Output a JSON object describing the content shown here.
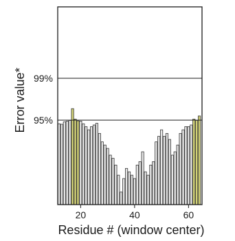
{
  "chart_data": {
    "type": "bar",
    "xlabel": "Residue # (window center)",
    "ylabel": "Error value*",
    "x_ticks": [
      20,
      40,
      60
    ],
    "x_range": [
      11.5,
      65
    ],
    "y_scale": "cumulative percentile (nonlinear)",
    "reference_lines": [
      {
        "label": "99%",
        "value": 99
      },
      {
        "label": "95%",
        "value": 95
      }
    ],
    "colors": {
      "default_bar": "#e6e6e6",
      "highlight_bar": "#d2d277",
      "bar_edge": "#333333"
    },
    "threshold_percentile": 95,
    "bars": [
      {
        "x": 12,
        "pct": 93.5
      },
      {
        "x": 13,
        "pct": 93.3
      },
      {
        "x": 14,
        "pct": 94.3
      },
      {
        "x": 15,
        "pct": 94.6
      },
      {
        "x": 16,
        "pct": 94.9
      },
      {
        "x": 17,
        "pct": 96.1,
        "highlight": true
      },
      {
        "x": 18,
        "pct": 95.1,
        "highlight": true
      },
      {
        "x": 19,
        "pct": 94.7,
        "highlight": true
      },
      {
        "x": 20,
        "pct": 94.6
      },
      {
        "x": 21,
        "pct": 93.5
      },
      {
        "x": 22,
        "pct": 92.3
      },
      {
        "x": 23,
        "pct": 91.0
      },
      {
        "x": 24,
        "pct": 92.3
      },
      {
        "x": 25,
        "pct": 93.0
      },
      {
        "x": 26,
        "pct": 93.7
      },
      {
        "x": 27,
        "pct": 89.5
      },
      {
        "x": 28,
        "pct": 86.0
      },
      {
        "x": 29,
        "pct": 84.7
      },
      {
        "x": 30,
        "pct": 83.3
      },
      {
        "x": 31,
        "pct": 80.5
      },
      {
        "x": 32,
        "pct": 79.2
      },
      {
        "x": 33,
        "pct": 76.4
      },
      {
        "x": 34,
        "pct": 72.2
      },
      {
        "x": 35,
        "pct": 65.2
      },
      {
        "x": 36,
        "pct": 70.8
      },
      {
        "x": 37,
        "pct": 75.0
      },
      {
        "x": 38,
        "pct": 73.6
      },
      {
        "x": 39,
        "pct": 72.2
      },
      {
        "x": 40,
        "pct": 70.8
      },
      {
        "x": 41,
        "pct": 76.4
      },
      {
        "x": 42,
        "pct": 77.8
      },
      {
        "x": 43,
        "pct": 81.9
      },
      {
        "x": 44,
        "pct": 73.6
      },
      {
        "x": 45,
        "pct": 72.2
      },
      {
        "x": 46,
        "pct": 76.4
      },
      {
        "x": 47,
        "pct": 77.8
      },
      {
        "x": 48,
        "pct": 86.0
      },
      {
        "x": 49,
        "pct": 88.3
      },
      {
        "x": 50,
        "pct": 91.0
      },
      {
        "x": 51,
        "pct": 88.3
      },
      {
        "x": 52,
        "pct": 89.5
      },
      {
        "x": 53,
        "pct": 87.0
      },
      {
        "x": 54,
        "pct": 80.5
      },
      {
        "x": 55,
        "pct": 81.9
      },
      {
        "x": 56,
        "pct": 84.7
      },
      {
        "x": 57,
        "pct": 89.5
      },
      {
        "x": 58,
        "pct": 91.0
      },
      {
        "x": 59,
        "pct": 92.3
      },
      {
        "x": 60,
        "pct": 92.3
      },
      {
        "x": 61,
        "pct": 93.0
      },
      {
        "x": 62,
        "pct": 95.1,
        "highlight": true
      },
      {
        "x": 63,
        "pct": 94.9,
        "highlight": true
      },
      {
        "x": 64,
        "pct": 95.4,
        "highlight": true
      }
    ]
  }
}
